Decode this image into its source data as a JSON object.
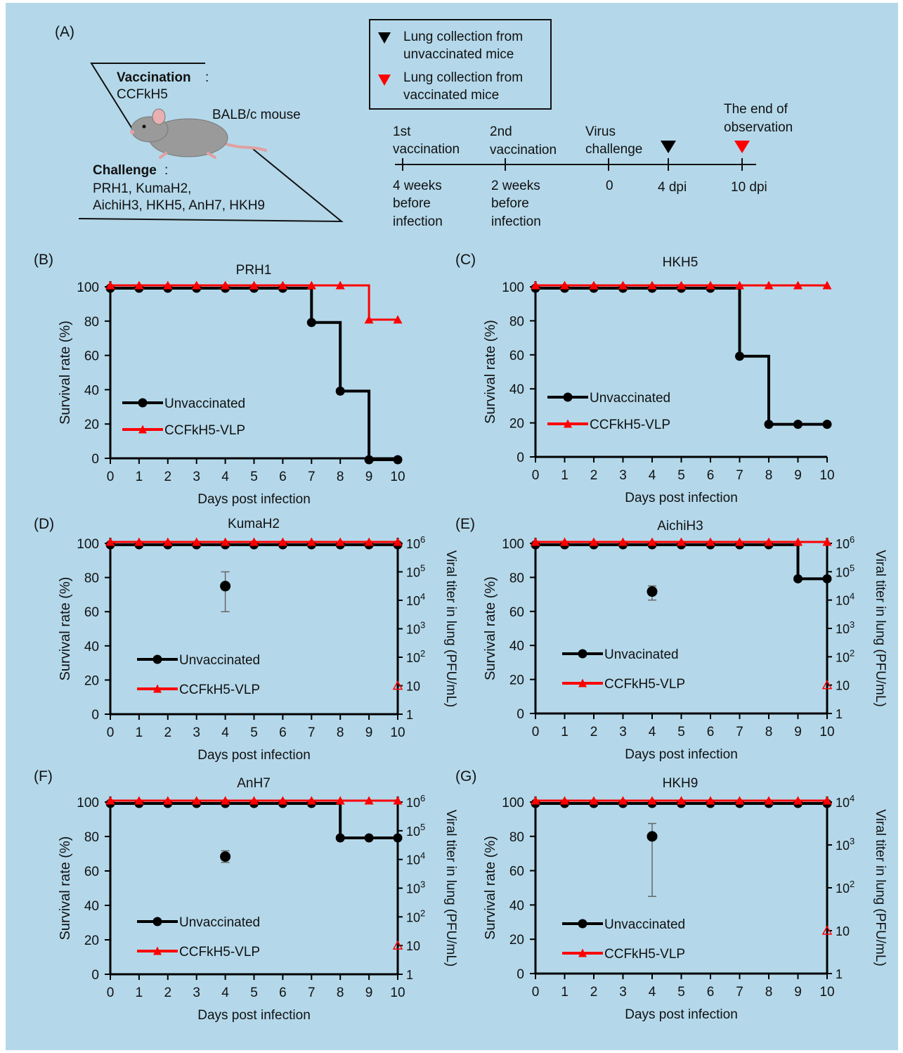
{
  "panel_a": {
    "label": "(A)",
    "legend": {
      "black_line1": "Lung collection from",
      "black_line2": "unvaccinated mice",
      "red_line1": "Lung collection from",
      "red_line2": "vaccinated mice"
    },
    "mouse": {
      "vaccination_title": "Vaccination",
      "vaccination_value": "CCFkH5",
      "strain": "BALB/c mouse",
      "challenge_title": "Challenge",
      "challenge_line1": "PRH1, KumaH2,",
      "challenge_line2": "AichiH3, HKH5, AnH7, HKH9"
    },
    "timeline": {
      "events": [
        {
          "top1": "1st",
          "top2": "vaccination",
          "bot1": "4 weeks",
          "bot2": "before",
          "bot3": "infection"
        },
        {
          "top1": "2nd",
          "top2": "vaccination",
          "bot1": "2 weeks",
          "bot2": "before",
          "bot3": "infection"
        },
        {
          "top1": "Virus",
          "top2": "challenge",
          "bot1": "0",
          "bot2": "",
          "bot3": ""
        },
        {
          "top1": "",
          "top2": "",
          "bot1": "4 dpi",
          "bot2": "",
          "bot3": ""
        },
        {
          "top1": "The end of",
          "top2": "observation",
          "bot1": "10 dpi",
          "bot2": "",
          "bot3": ""
        }
      ]
    }
  },
  "colors": {
    "background": "#b4d8ea",
    "unvaccinated": "#000000",
    "vaccinated": "#ff0000",
    "error_bar": "#666666"
  },
  "chart_data": [
    {
      "panel": "(B)",
      "title": "PRH1",
      "type": "line",
      "step": true,
      "x": [
        0,
        1,
        2,
        3,
        4,
        5,
        6,
        7,
        8,
        9,
        10
      ],
      "xlabel": "Days post infection",
      "ylabel": "Survival rate (%)",
      "xlim": [
        0,
        10
      ],
      "ylim": [
        0,
        100
      ],
      "yticks": [
        0,
        20,
        40,
        60,
        80,
        100
      ],
      "series": [
        {
          "name": "Unvaccinated",
          "marker": "circle",
          "values": [
            100,
            100,
            100,
            100,
            100,
            100,
            100,
            80,
            40,
            0,
            0
          ]
        },
        {
          "name": "CCFkH5-VLP",
          "marker": "triangle",
          "values": [
            100,
            100,
            100,
            100,
            100,
            100,
            100,
            100,
            100,
            80,
            80
          ]
        }
      ],
      "legend_position": "bottom-left"
    },
    {
      "panel": "(C)",
      "title": "HKH5",
      "type": "line",
      "step": true,
      "x": [
        0,
        1,
        2,
        3,
        4,
        5,
        6,
        7,
        8,
        9,
        10
      ],
      "xlabel": "Days post infection",
      "ylabel": "Survival rate (%)",
      "xlim": [
        0,
        10
      ],
      "ylim": [
        0,
        100
      ],
      "yticks": [
        0,
        20,
        40,
        60,
        80,
        100
      ],
      "series": [
        {
          "name": "Unvaccinated",
          "marker": "circle",
          "values": [
            100,
            100,
            100,
            100,
            100,
            100,
            100,
            60,
            20,
            20,
            20
          ]
        },
        {
          "name": "CCFkH5-VLP",
          "marker": "triangle",
          "values": [
            100,
            100,
            100,
            100,
            100,
            100,
            100,
            100,
            100,
            100,
            100
          ]
        }
      ],
      "legend_position": "bottom-left"
    },
    {
      "panel": "(D)",
      "title": "KumaH2",
      "type": "line",
      "step": true,
      "x": [
        0,
        1,
        2,
        3,
        4,
        5,
        6,
        7,
        8,
        9,
        10
      ],
      "xlabel": "Days post infection",
      "ylabel": "Survival rate (%)",
      "y2label": "Viral titer in lung (PFU/mL)",
      "xlim": [
        0,
        10
      ],
      "ylim": [
        0,
        100
      ],
      "yticks": [
        0,
        20,
        40,
        60,
        80,
        100
      ],
      "y2log": true,
      "y2exp_range": [
        0,
        6
      ],
      "y2tick_exps": [
        0,
        1,
        2,
        3,
        4,
        5,
        6
      ],
      "y2tick_labels": [
        {
          "b": "1",
          "e": ""
        },
        {
          "b": "10",
          "e": ""
        },
        {
          "b": "10",
          "e": "2"
        },
        {
          "b": "10",
          "e": "3"
        },
        {
          "b": "10",
          "e": "4"
        },
        {
          "b": "10",
          "e": "5"
        },
        {
          "b": "10",
          "e": "6"
        }
      ],
      "series": [
        {
          "name": "Unvaccinated",
          "marker": "circle",
          "values": [
            100,
            100,
            100,
            100,
            100,
            100,
            100,
            100,
            100,
            100,
            100
          ]
        },
        {
          "name": "CCFkH5-VLP",
          "marker": "triangle",
          "values": [
            100,
            100,
            100,
            100,
            100,
            100,
            100,
            100,
            100,
            100,
            100
          ]
        }
      ],
      "titer_points": [
        {
          "day": 4,
          "group": "Unvaccinated",
          "value": 31600,
          "error_low": 3980,
          "error_high": 100000
        },
        {
          "day": 10,
          "group": "CCFkH5-VLP",
          "value": 10,
          "open": true
        }
      ],
      "legend_position": "bottom-left"
    },
    {
      "panel": "(E)",
      "title": "AichiH3",
      "type": "line",
      "step": true,
      "x": [
        0,
        1,
        2,
        3,
        4,
        5,
        6,
        7,
        8,
        9,
        10
      ],
      "xlabel": "Days post infection",
      "ylabel": "Survival rate (%)",
      "y2label": "Viral titer in lung (PFU/mL)",
      "xlim": [
        0,
        10
      ],
      "ylim": [
        0,
        100
      ],
      "yticks": [
        0,
        20,
        40,
        60,
        80,
        100
      ],
      "y2log": true,
      "y2exp_range": [
        0,
        6
      ],
      "y2tick_exps": [
        0,
        1,
        2,
        3,
        4,
        5,
        6
      ],
      "y2tick_labels": [
        {
          "b": "1",
          "e": ""
        },
        {
          "b": "10",
          "e": ""
        },
        {
          "b": "10",
          "e": "2"
        },
        {
          "b": "10",
          "e": "3"
        },
        {
          "b": "10",
          "e": "4"
        },
        {
          "b": "10",
          "e": "5"
        },
        {
          "b": "10",
          "e": "6"
        }
      ],
      "series": [
        {
          "name": "Unvacinated",
          "marker": "circle",
          "values": [
            100,
            100,
            100,
            100,
            100,
            100,
            100,
            100,
            100,
            80,
            80
          ]
        },
        {
          "name": "CCFkH5-VLP",
          "marker": "triangle",
          "values": [
            100,
            100,
            100,
            100,
            100,
            100,
            100,
            100,
            100,
            100,
            100
          ]
        }
      ],
      "titer_points": [
        {
          "day": 4,
          "group": "Unvaccinated",
          "value": 20000,
          "error_low": 10000,
          "error_high": 31600
        },
        {
          "day": 10,
          "group": "CCFkH5-VLP",
          "value": 10,
          "open": true
        }
      ],
      "legend_position": "bottom-left"
    },
    {
      "panel": "(F)",
      "title": "AnH7",
      "type": "line",
      "step": true,
      "x": [
        0,
        1,
        2,
        3,
        4,
        5,
        6,
        7,
        8,
        9,
        10
      ],
      "xlabel": "Days post infection",
      "ylabel": "Survival rate (%)",
      "y2label": "Viral titer in lung (PFU/mL)",
      "xlim": [
        0,
        10
      ],
      "ylim": [
        0,
        100
      ],
      "yticks": [
        0,
        20,
        40,
        60,
        80,
        100
      ],
      "y2log": true,
      "y2exp_range": [
        0,
        6
      ],
      "y2tick_exps": [
        0,
        1,
        2,
        3,
        4,
        5,
        6
      ],
      "y2tick_labels": [
        {
          "b": "1",
          "e": ""
        },
        {
          "b": "10",
          "e": ""
        },
        {
          "b": "10",
          "e": "2"
        },
        {
          "b": "10",
          "e": "3"
        },
        {
          "b": "10",
          "e": "4"
        },
        {
          "b": "10",
          "e": "5"
        },
        {
          "b": "10",
          "e": "6"
        }
      ],
      "series": [
        {
          "name": "Unvaccinated",
          "marker": "circle",
          "values": [
            100,
            100,
            100,
            100,
            100,
            100,
            100,
            100,
            80,
            80,
            80
          ]
        },
        {
          "name": "CCFkH5-VLP",
          "marker": "triangle",
          "values": [
            100,
            100,
            100,
            100,
            100,
            100,
            100,
            100,
            100,
            100,
            100
          ]
        }
      ],
      "titer_points": [
        {
          "day": 4,
          "group": "Unvaccinated",
          "value": 12600,
          "error_low": 7900,
          "error_high": 20000
        },
        {
          "day": 10,
          "group": "CCFkH5-VLP",
          "value": 10,
          "open": true
        }
      ],
      "legend_position": "bottom-left"
    },
    {
      "panel": "(G)",
      "title": "HKH9",
      "type": "line",
      "step": true,
      "x": [
        0,
        1,
        2,
        3,
        4,
        5,
        6,
        7,
        8,
        9,
        10
      ],
      "xlabel": "Days post infection",
      "ylabel": "Survival rate (%)",
      "y2label": "Viral titer in lung (PFU/mL)",
      "xlim": [
        0,
        10
      ],
      "ylim": [
        0,
        100
      ],
      "yticks": [
        0,
        20,
        40,
        60,
        80,
        100
      ],
      "y2log": true,
      "y2exp_range": [
        0,
        4
      ],
      "y2tick_exps": [
        0,
        1,
        2,
        3,
        4
      ],
      "y2tick_labels": [
        {
          "b": "1",
          "e": ""
        },
        {
          "b": "10",
          "e": ""
        },
        {
          "b": "10",
          "e": "2"
        },
        {
          "b": "10",
          "e": "3"
        },
        {
          "b": "10",
          "e": "4"
        }
      ],
      "series": [
        {
          "name": "Unvaccinated",
          "marker": "circle",
          "values": [
            100,
            100,
            100,
            100,
            100,
            100,
            100,
            100,
            100,
            100,
            100
          ]
        },
        {
          "name": "CCFkH5-VLP",
          "marker": "triangle",
          "values": [
            100,
            100,
            100,
            100,
            100,
            100,
            100,
            100,
            100,
            100,
            100
          ]
        }
      ],
      "titer_points": [
        {
          "day": 4,
          "group": "Unvaccinated",
          "value": 1580,
          "error_low": 63,
          "error_high": 3160
        },
        {
          "day": 10,
          "group": "CCFkH5-VLP",
          "value": 10,
          "open": true
        }
      ],
      "legend_position": "bottom-left"
    }
  ]
}
